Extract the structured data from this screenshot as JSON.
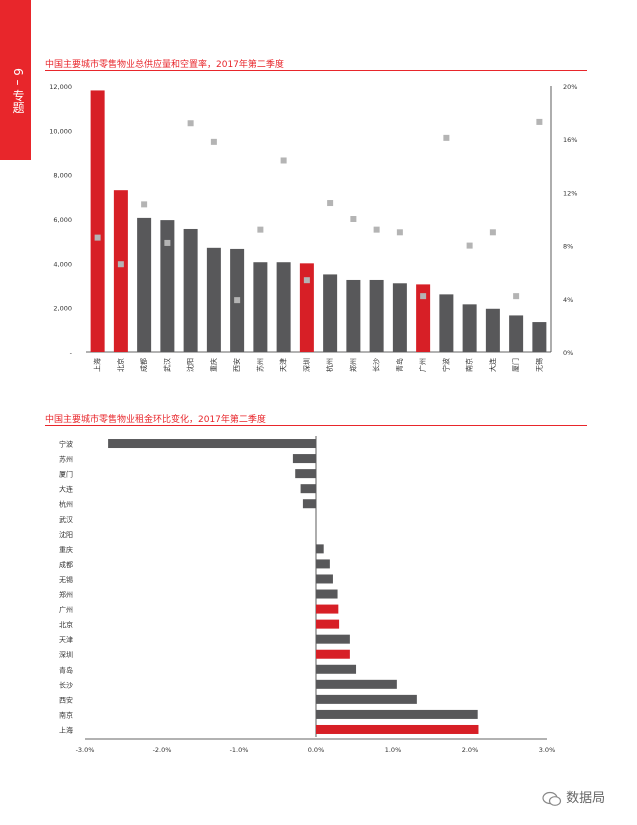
{
  "side_tab": {
    "label": "6 – 专题",
    "color": "#e8262b"
  },
  "watermark": {
    "text": "数据局",
    "icon": "wechat-icon"
  },
  "colors": {
    "red": "#d71f26",
    "grey": "#58585a",
    "marker": "#b4b4b4",
    "accent": "#e8262b"
  },
  "chart_data": [
    {
      "type": "bar",
      "title": "中国主要城市零售物业总供应量和空置率，2017年第二季度",
      "categories": [
        "上海",
        "北京",
        "成都",
        "武汉",
        "沈阳",
        "重庆",
        "西安",
        "苏州",
        "天津",
        "深圳",
        "杭州",
        "郑州",
        "长沙",
        "青岛",
        "广州",
        "宁波",
        "南京",
        "大连",
        "厦门",
        "无锡"
      ],
      "highlight": [
        "上海",
        "北京",
        "深圳",
        "广州"
      ],
      "series": [
        {
          "axis": "left",
          "values": [
            11800,
            7300,
            6050,
            5950,
            5550,
            4700,
            4650,
            4050,
            4050,
            4000,
            3500,
            3250,
            3250,
            3100,
            3050,
            2600,
            2150,
            1950,
            1650,
            1350
          ]
        },
        {
          "axis": "right",
          "marker": "square",
          "values": [
            8.6,
            6.6,
            11.1,
            8.2,
            17.2,
            15.8,
            3.9,
            9.2,
            14.4,
            5.4,
            11.2,
            10.0,
            9.2,
            9.0,
            4.2,
            16.1,
            8.0,
            9.0,
            4.2,
            17.3
          ]
        }
      ],
      "ylim_left": [
        0,
        12000
      ],
      "yticks_left": [
        "-",
        "2,000",
        "4,000",
        "6,000",
        "8,000",
        "10,000",
        "12,000"
      ],
      "ylim_right": [
        0,
        20
      ],
      "yticks_right": [
        "0%",
        "4%",
        "8%",
        "12%",
        "16%",
        "20%"
      ]
    },
    {
      "type": "bar",
      "orientation": "horizontal",
      "title": "中国主要城市零售物业租金环比变化，2017年第二季度",
      "categories": [
        "宁波",
        "苏州",
        "厦门",
        "大连",
        "杭州",
        "武汉",
        "沈阳",
        "重庆",
        "成都",
        "无锡",
        "郑州",
        "广州",
        "北京",
        "天津",
        "深圳",
        "青岛",
        "长沙",
        "西安",
        "南京",
        "上海"
      ],
      "highlight": [
        "广州",
        "北京",
        "深圳",
        "上海"
      ],
      "values": [
        -2.7,
        -0.3,
        -0.27,
        -0.2,
        -0.17,
        0,
        0,
        0.1,
        0.18,
        0.22,
        0.28,
        0.29,
        0.3,
        0.44,
        0.44,
        0.52,
        1.05,
        1.31,
        2.1,
        2.11
      ],
      "xlim": [
        -3.0,
        3.0
      ],
      "xticks": [
        "-3.0%",
        "-2.0%",
        "-1.0%",
        "0.0%",
        "1.0%",
        "2.0%",
        "3.0%"
      ]
    }
  ]
}
